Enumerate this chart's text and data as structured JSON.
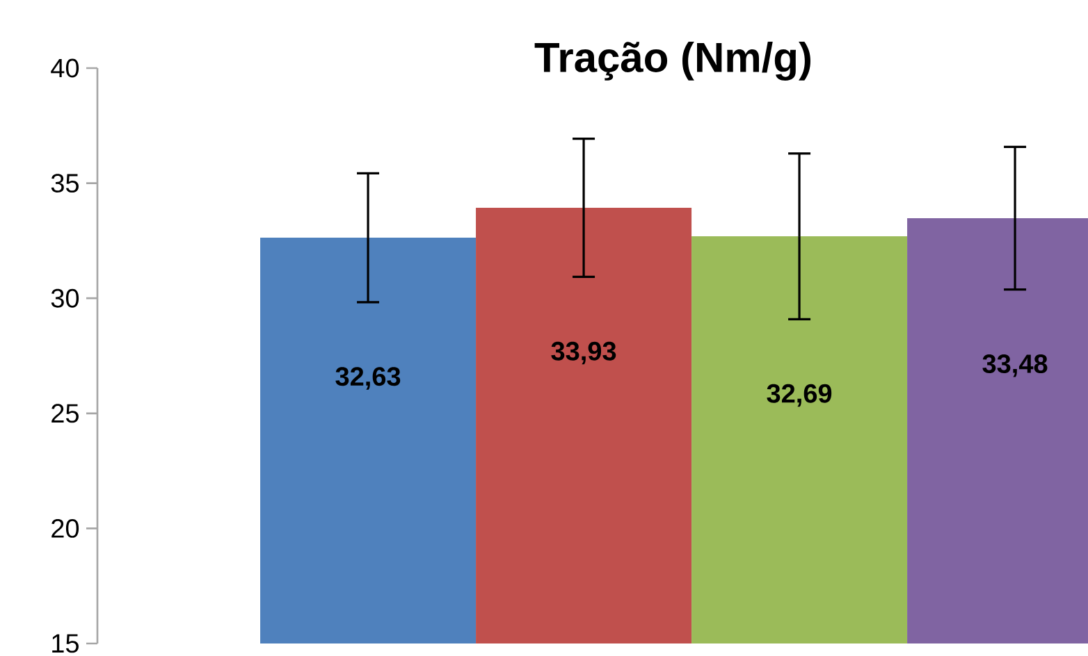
{
  "chart_data": {
    "type": "bar",
    "title": "**Tração (Nm/g)**",
    "categories": [
      null,
      null,
      null,
      null
    ],
    "values": [
      32.63,
      33.93,
      32.69,
      33.48
    ],
    "colors": [
      "#4f81bd",
      "#c0504d",
      "#9bbb59",
      "#8064a2"
    ],
    "errors": [
      2.8,
      3.0,
      3.6,
      3.1
    ],
    "value_labels": [
      "32,63",
      "33,93",
      "32,69",
      "33,48"
    ],
    "ylim": [
      15,
      40
    ],
    "yticks": [
      15,
      20,
      25,
      30,
      35,
      40
    ],
    "grid": false
  }
}
